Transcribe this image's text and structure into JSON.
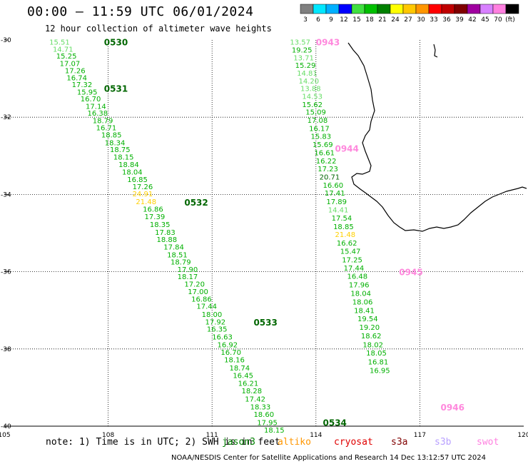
{
  "header": {
    "title": "00:00 – 11:59 UTC 06/01/2024",
    "subtitle": "12 hour collection of altimeter wave heights"
  },
  "legend": {
    "unit": "(ft)",
    "bins": [
      {
        "label": "3",
        "color": "#808080"
      },
      {
        "label": "6",
        "color": "#00e8ff"
      },
      {
        "label": "9",
        "color": "#00b0ff"
      },
      {
        "label": "12",
        "color": "#0000ff"
      },
      {
        "label": "15",
        "color": "#40e040"
      },
      {
        "label": "18",
        "color": "#00c000"
      },
      {
        "label": "21",
        "color": "#008000"
      },
      {
        "label": "24",
        "color": "#ffff00"
      },
      {
        "label": "27",
        "color": "#ffc800"
      },
      {
        "label": "30",
        "color": "#ff9600"
      },
      {
        "label": "33",
        "color": "#ff0000"
      },
      {
        "label": "36",
        "color": "#c00000"
      },
      {
        "label": "39",
        "color": "#800000"
      },
      {
        "label": "42",
        "color": "#a000a0"
      },
      {
        "label": "45",
        "color": "#d880ff"
      },
      {
        "label": "70",
        "color": "#ff80e0"
      },
      {
        "label": "",
        "color": "#000000"
      }
    ]
  },
  "axes": {
    "lon_ticks": [
      "105",
      "108",
      "111",
      "114",
      "117",
      "120"
    ],
    "lat_ticks": [
      "-30",
      "-32",
      "-34",
      "-36",
      "-38",
      "-40"
    ]
  },
  "colors": {
    "light": "#66dd66",
    "med": "#00b000",
    "dark": "#006600",
    "yellow": "#ffd000",
    "pink": "#ff88dd"
  },
  "track1": {
    "times": [
      {
        "label": "0530",
        "lon": 107.88,
        "lat": -30.05,
        "color": "dark"
      },
      {
        "label": "0531",
        "lon": 107.88,
        "lat": -31.25,
        "color": "dark"
      },
      {
        "label": "0532",
        "lon": 110.2,
        "lat": -34.2,
        "color": "dark"
      },
      {
        "label": "0533",
        "lon": 112.2,
        "lat": -37.3,
        "color": "dark"
      },
      {
        "label": "0534",
        "lon": 114.2,
        "lat": -39.9,
        "color": "dark"
      }
    ],
    "points": [
      {
        "v": "15.51",
        "lon": 106.3,
        "lat": -30.05,
        "c": "light"
      },
      {
        "v": "14.71",
        "lon": 106.4,
        "lat": -30.23,
        "c": "light"
      },
      {
        "v": "15.25",
        "lon": 106.5,
        "lat": -30.41,
        "c": "med"
      },
      {
        "v": "17.07",
        "lon": 106.6,
        "lat": -30.6,
        "c": "med"
      },
      {
        "v": "17.26",
        "lon": 106.75,
        "lat": -30.79,
        "c": "med"
      },
      {
        "v": "16.74",
        "lon": 106.8,
        "lat": -30.97,
        "c": "med"
      },
      {
        "v": "17.32",
        "lon": 106.95,
        "lat": -31.15,
        "c": "med"
      },
      {
        "v": "15.95",
        "lon": 107.1,
        "lat": -31.34,
        "c": "med"
      },
      {
        "v": "16.70",
        "lon": 107.2,
        "lat": -31.52,
        "c": "med"
      },
      {
        "v": "17.14",
        "lon": 107.35,
        "lat": -31.71,
        "c": "med"
      },
      {
        "v": "16.38",
        "lon": 107.4,
        "lat": -31.89,
        "c": "med"
      },
      {
        "v": "18.79",
        "lon": 107.55,
        "lat": -32.08,
        "c": "med"
      },
      {
        "v": "16.71",
        "lon": 107.65,
        "lat": -32.26,
        "c": "med"
      },
      {
        "v": "18.85",
        "lon": 107.8,
        "lat": -32.45,
        "c": "med"
      },
      {
        "v": "18.34",
        "lon": 107.9,
        "lat": -32.65,
        "c": "med"
      },
      {
        "v": "18.75",
        "lon": 108.05,
        "lat": -32.83,
        "c": "med"
      },
      {
        "v": "18.15",
        "lon": 108.15,
        "lat": -33.02,
        "c": "med"
      },
      {
        "v": "18.84",
        "lon": 108.3,
        "lat": -33.22,
        "c": "med"
      },
      {
        "v": "18.04",
        "lon": 108.4,
        "lat": -33.41,
        "c": "med"
      },
      {
        "v": "16.85",
        "lon": 108.55,
        "lat": -33.6,
        "c": "med"
      },
      {
        "v": "17.26",
        "lon": 108.7,
        "lat": -33.79,
        "c": "med"
      },
      {
        "v": "24.91",
        "lon": 108.7,
        "lat": -33.97,
        "c": "yellow"
      },
      {
        "v": "21.48",
        "lon": 108.8,
        "lat": -34.18,
        "c": "yellow"
      },
      {
        "v": "16.86",
        "lon": 109.0,
        "lat": -34.37,
        "c": "med"
      },
      {
        "v": "17.39",
        "lon": 109.05,
        "lat": -34.57,
        "c": "med"
      },
      {
        "v": "18.35",
        "lon": 109.2,
        "lat": -34.77,
        "c": "med"
      },
      {
        "v": "17.83",
        "lon": 109.35,
        "lat": -34.97,
        "c": "med"
      },
      {
        "v": "18.88",
        "lon": 109.4,
        "lat": -35.16,
        "c": "med"
      },
      {
        "v": "17.84",
        "lon": 109.6,
        "lat": -35.35,
        "c": "med"
      },
      {
        "v": "18.51",
        "lon": 109.7,
        "lat": -35.55,
        "c": "med"
      },
      {
        "v": "18.79",
        "lon": 109.8,
        "lat": -35.74,
        "c": "med"
      },
      {
        "v": "17.90",
        "lon": 110.0,
        "lat": -35.93,
        "c": "med"
      },
      {
        "v": "18.17",
        "lon": 110.0,
        "lat": -36.12,
        "c": "med"
      },
      {
        "v": "17.20",
        "lon": 110.2,
        "lat": -36.31,
        "c": "med"
      },
      {
        "v": "17.00",
        "lon": 110.3,
        "lat": -36.51,
        "c": "med"
      },
      {
        "v": "16.86",
        "lon": 110.4,
        "lat": -36.7,
        "c": "med"
      },
      {
        "v": "17.44",
        "lon": 110.55,
        "lat": -36.89,
        "c": "med"
      },
      {
        "v": "18.00",
        "lon": 110.7,
        "lat": -37.1,
        "c": "med"
      },
      {
        "v": "17.92",
        "lon": 110.8,
        "lat": -37.29,
        "c": "med"
      },
      {
        "v": "16.35",
        "lon": 110.85,
        "lat": -37.48,
        "c": "med"
      },
      {
        "v": "16.63",
        "lon": 111.0,
        "lat": -37.68,
        "c": "med"
      },
      {
        "v": "16.92",
        "lon": 111.15,
        "lat": -37.88,
        "c": "med"
      },
      {
        "v": "16.70",
        "lon": 111.25,
        "lat": -38.08,
        "c": "med"
      },
      {
        "v": "18.16",
        "lon": 111.35,
        "lat": -38.27,
        "c": "med"
      },
      {
        "v": "18.74",
        "lon": 111.5,
        "lat": -38.48,
        "c": "med"
      },
      {
        "v": "16.45",
        "lon": 111.6,
        "lat": -38.68,
        "c": "med"
      },
      {
        "v": "16.21",
        "lon": 111.75,
        "lat": -38.88,
        "c": "med"
      },
      {
        "v": "18.28",
        "lon": 111.85,
        "lat": -39.08,
        "c": "med"
      },
      {
        "v": "17.42",
        "lon": 111.95,
        "lat": -39.29,
        "c": "med"
      },
      {
        "v": "18.33",
        "lon": 112.1,
        "lat": -39.49,
        "c": "med"
      },
      {
        "v": "18.60",
        "lon": 112.2,
        "lat": -39.69,
        "c": "med"
      },
      {
        "v": "17.95",
        "lon": 112.3,
        "lat": -39.9,
        "c": "med"
      },
      {
        "v": "18.15",
        "lon": 112.5,
        "lat": -40.09,
        "c": "med"
      }
    ]
  },
  "track2": {
    "times": [
      {
        "label": "0943",
        "lon": 114.0,
        "lat": -30.05,
        "color": "pink"
      },
      {
        "label": "0944",
        "lon": 114.55,
        "lat": -32.8,
        "color": "pink"
      },
      {
        "label": "0945",
        "lon": 116.4,
        "lat": -36.0,
        "color": "pink"
      },
      {
        "label": "0946",
        "lon": 117.6,
        "lat": -39.5,
        "color": "pink"
      }
    ],
    "points": [
      {
        "v": "13.57",
        "lon": 113.25,
        "lat": -30.05,
        "c": "light"
      },
      {
        "v": "19.25",
        "lon": 113.3,
        "lat": -30.25,
        "c": "med"
      },
      {
        "v": "13.71",
        "lon": 113.35,
        "lat": -30.45,
        "c": "light"
      },
      {
        "v": "15.29",
        "lon": 113.4,
        "lat": -30.65,
        "c": "med"
      },
      {
        "v": "14.81",
        "lon": 113.45,
        "lat": -30.85,
        "c": "light"
      },
      {
        "v": "14.20",
        "lon": 113.5,
        "lat": -31.05,
        "c": "light"
      },
      {
        "v": "13.88",
        "lon": 113.55,
        "lat": -31.25,
        "c": "light"
      },
      {
        "v": "14.53",
        "lon": 113.6,
        "lat": -31.45,
        "c": "light"
      },
      {
        "v": "15.62",
        "lon": 113.6,
        "lat": -31.66,
        "c": "med"
      },
      {
        "v": "15.09",
        "lon": 113.7,
        "lat": -31.86,
        "c": "med"
      },
      {
        "v": "17.08",
        "lon": 113.75,
        "lat": -32.07,
        "c": "med"
      },
      {
        "v": "16.17",
        "lon": 113.8,
        "lat": -32.28,
        "c": "med"
      },
      {
        "v": "15.83",
        "lon": 113.85,
        "lat": -32.49,
        "c": "med"
      },
      {
        "v": "15.69",
        "lon": 113.9,
        "lat": -32.7,
        "c": "med"
      },
      {
        "v": "16.61",
        "lon": 113.95,
        "lat": -32.91,
        "c": "med"
      },
      {
        "v": "16.22",
        "lon": 114.0,
        "lat": -33.12,
        "c": "med"
      },
      {
        "v": "17.23",
        "lon": 114.05,
        "lat": -33.33,
        "c": "med"
      },
      {
        "v": "20.71",
        "lon": 114.1,
        "lat": -33.54,
        "c": "dark"
      },
      {
        "v": "16.60",
        "lon": 114.2,
        "lat": -33.75,
        "c": "med"
      },
      {
        "v": "17.41",
        "lon": 114.25,
        "lat": -33.96,
        "c": "med"
      },
      {
        "v": "17.89",
        "lon": 114.3,
        "lat": -34.18,
        "c": "med"
      },
      {
        "v": "14.41",
        "lon": 114.35,
        "lat": -34.39,
        "c": "light"
      },
      {
        "v": "17.54",
        "lon": 114.45,
        "lat": -34.6,
        "c": "med"
      },
      {
        "v": "18.85",
        "lon": 114.5,
        "lat": -34.82,
        "c": "med"
      },
      {
        "v": "21.48",
        "lon": 114.55,
        "lat": -35.03,
        "c": "yellow"
      },
      {
        "v": "16.62",
        "lon": 114.6,
        "lat": -35.25,
        "c": "med"
      },
      {
        "v": "15.47",
        "lon": 114.7,
        "lat": -35.46,
        "c": "med"
      },
      {
        "v": "17.25",
        "lon": 114.75,
        "lat": -35.68,
        "c": "med"
      },
      {
        "v": "17.44",
        "lon": 114.8,
        "lat": -35.9,
        "c": "med"
      },
      {
        "v": "16.48",
        "lon": 114.9,
        "lat": -36.11,
        "c": "med"
      },
      {
        "v": "17.96",
        "lon": 114.95,
        "lat": -36.33,
        "c": "med"
      },
      {
        "v": "18.04",
        "lon": 115.0,
        "lat": -36.55,
        "c": "med"
      },
      {
        "v": "18.06",
        "lon": 115.05,
        "lat": -36.77,
        "c": "med"
      },
      {
        "v": "18.41",
        "lon": 115.1,
        "lat": -37.0,
        "c": "med"
      },
      {
        "v": "19.54",
        "lon": 115.2,
        "lat": -37.21,
        "c": "med"
      },
      {
        "v": "19.20",
        "lon": 115.25,
        "lat": -37.43,
        "c": "med"
      },
      {
        "v": "18.62",
        "lon": 115.3,
        "lat": -37.65,
        "c": "med"
      },
      {
        "v": "18.02",
        "lon": 115.35,
        "lat": -37.88,
        "c": "med"
      },
      {
        "v": "18.05",
        "lon": 115.45,
        "lat": -38.1,
        "c": "med"
      },
      {
        "v": "16.81",
        "lon": 115.5,
        "lat": -38.33,
        "c": "med"
      },
      {
        "v": "16.95",
        "lon": 115.55,
        "lat": -38.55,
        "c": "med"
      }
    ]
  },
  "note": {
    "text": "note: 1) Time is in UTC; 2) SWH is in feet",
    "satellites": [
      {
        "label": "jason3",
        "color": "#008000"
      },
      {
        "label": "altiko",
        "color": "#ff9600"
      },
      {
        "label": "cryosat",
        "color": "#e00000"
      },
      {
        "label": "s3a",
        "color": "#800000"
      },
      {
        "label": "s3b",
        "color": "#b8a0ff"
      },
      {
        "label": "swot",
        "color": "#ff80e0"
      }
    ]
  },
  "credit": "NOAA/NESDIS Center for Satellite Applications and Research   14 Dec 13:12:57 UTC 2024"
}
